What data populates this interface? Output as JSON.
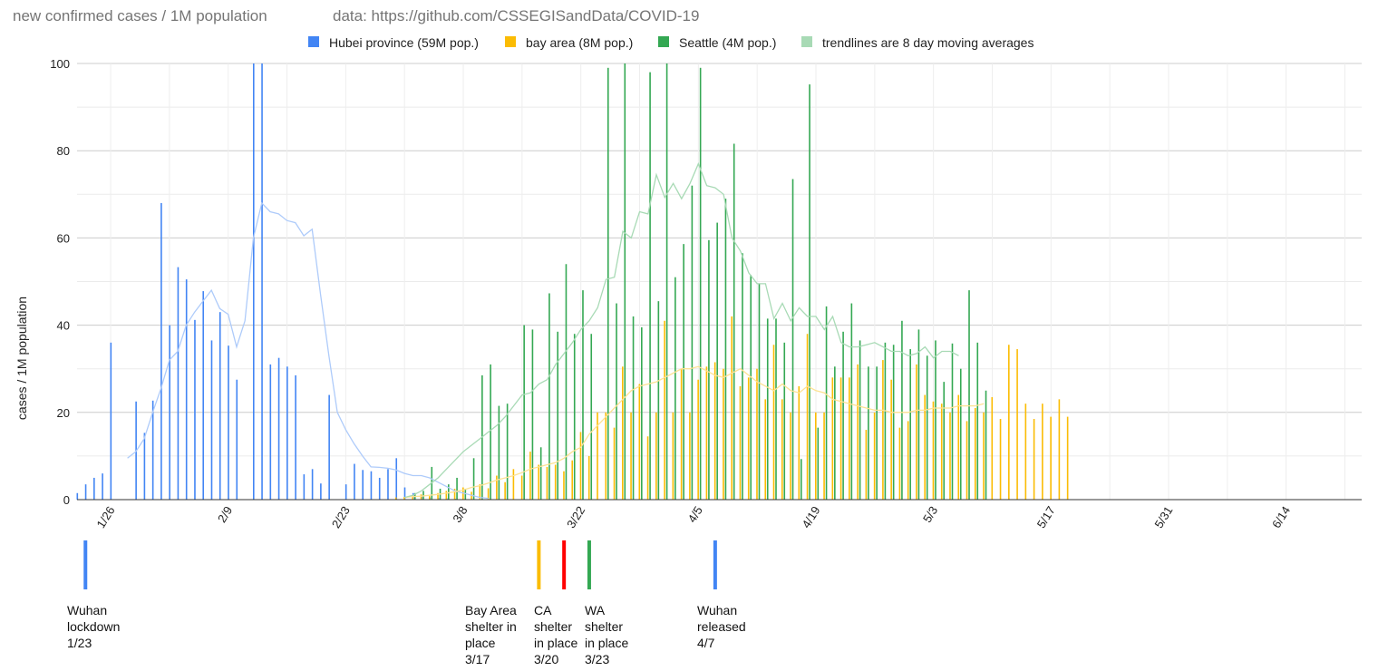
{
  "chart_data": {
    "type": "bar",
    "title": "new confirmed cases / 1M population",
    "subtitle": "data: https://github.com/CSSEGISandData/COVID-19",
    "ylabel": "cases / 1M population",
    "ylim": [
      0,
      100
    ],
    "y_ticks": [
      "0",
      "20",
      "40",
      "60",
      "80",
      "100"
    ],
    "x_ticks": [
      "1/26",
      "2/9",
      "2/23",
      "3/8",
      "3/22",
      "4/5",
      "4/19",
      "5/3",
      "5/17",
      "5/31",
      "6/14"
    ],
    "x_range": [
      "1/22",
      "6/23"
    ],
    "legend_position": "top",
    "grid": true,
    "series": [
      {
        "name": "Hubei province (59M pop.)",
        "color": "#4285F4",
        "start": "1/22",
        "values": [
          1.5,
          3.5,
          5,
          6,
          36,
          0,
          0,
          22.5,
          15.3,
          22.7,
          68,
          40,
          53.3,
          50.5,
          41.2,
          47.8,
          36.5,
          43,
          35.3,
          27.5,
          0,
          100,
          100,
          31,
          32.5,
          30.5,
          28.5,
          5.8,
          7,
          3.7,
          24,
          0,
          3.5,
          8.2,
          6.8,
          6.5,
          5,
          7,
          9.5,
          2.8,
          1.5,
          1,
          0.5,
          0.4,
          0.3,
          0.2,
          0.1,
          0.1,
          0.1,
          0.1,
          0.1,
          0.1,
          0.1,
          0.1
        ]
      },
      {
        "name": "bay area (8M pop.)",
        "color": "#FBBC04",
        "start": "2/29",
        "values": [
          0.5,
          0.6,
          1,
          1.2,
          0.8,
          1.5,
          2,
          2.5,
          2.8,
          1.8,
          3.5,
          2.6,
          5.5,
          4,
          7,
          5.5,
          11,
          8,
          7.5,
          8,
          6.5,
          9,
          15.5,
          10,
          20,
          20,
          16.5,
          30.5,
          20,
          26.5,
          14.5,
          20,
          41,
          20,
          30,
          20,
          27.5,
          30.5,
          31.5,
          30,
          42,
          26,
          28,
          30,
          23,
          35.5,
          23,
          20,
          26,
          38,
          20,
          20,
          28,
          28,
          28,
          31,
          16,
          20,
          32,
          27.5,
          16.5,
          18,
          31,
          24,
          22.5,
          22,
          20,
          24,
          18,
          21,
          20,
          23.5,
          18.5,
          35.5,
          34.5,
          22,
          18.5,
          22,
          19,
          23,
          19
        ]
      },
      {
        "name": "Seattle (4M pop.)",
        "color": "#34A853",
        "start": "2/29",
        "values": [
          0,
          0,
          1.5,
          2,
          7.5,
          2.5,
          3.5,
          5,
          2.5,
          9.5,
          28.5,
          31,
          21.5,
          22,
          0,
          40,
          39,
          12,
          47.3,
          38.5,
          54,
          38,
          48,
          38,
          0,
          99,
          45,
          100,
          42,
          39.5,
          98,
          45.5,
          100,
          51,
          58.6,
          72,
          99,
          59.5,
          63.5,
          69,
          81.6,
          56.5,
          51.5,
          49.5,
          41.5,
          41.5,
          36,
          73.5,
          9.3,
          95.2,
          16.5,
          44.3,
          30.5,
          38.5,
          45,
          36.5,
          30.5,
          30.5,
          36,
          35.5,
          41,
          34.5,
          39,
          33,
          36.5,
          27,
          35.8,
          30,
          48,
          36,
          25
        ]
      },
      {
        "name": "trendlines are 8 day moving averages",
        "color": "#A8DAB5",
        "type": "line"
      }
    ],
    "trendlines": [
      {
        "color": "#AECBFA",
        "start": "1/28",
        "values": [
          9.5,
          11,
          14,
          20,
          25.5,
          32,
          34,
          40,
          43,
          45.5,
          48,
          43.8,
          42.5,
          35,
          41,
          60,
          68,
          66,
          65.5,
          64,
          63.5,
          60.5,
          62,
          47,
          33,
          20,
          16,
          12.8,
          10,
          7.5,
          7.4,
          7.2,
          6.8,
          6,
          5.5,
          5.5,
          5,
          4,
          3,
          2,
          1.5,
          1,
          0.5,
          0.3
        ]
      },
      {
        "color": "#FDE293",
        "start": "3/1",
        "values": [
          0.5,
          0.7,
          0.8,
          1,
          1.2,
          1.5,
          1.8,
          2.2,
          2.8,
          3.2,
          3.8,
          4.5,
          5,
          5.5,
          6.2,
          7,
          7.5,
          8,
          8.5,
          9.5,
          11,
          12,
          15,
          17,
          19,
          21,
          23,
          25,
          26,
          26.5,
          27,
          28,
          29,
          30,
          30,
          30.5,
          29.5,
          28.5,
          28,
          29,
          30,
          28.5,
          27,
          26,
          25,
          26.5,
          25,
          24.5,
          26,
          25,
          24.5,
          23,
          22.5,
          22,
          21.5,
          21,
          20.5,
          20.5,
          20,
          20,
          20,
          20.5,
          20.5,
          21,
          21,
          21,
          21.5,
          21.5,
          21.5,
          22
        ]
      },
      {
        "color": "#A8DAB5",
        "start": "3/1",
        "values": [
          0.5,
          1,
          2,
          3.5,
          5,
          7,
          9,
          11,
          12.5,
          14,
          15.5,
          17,
          19,
          21.5,
          24,
          24.5,
          26.5,
          27.5,
          31,
          33.5,
          36,
          39,
          41,
          44,
          50.5,
          51,
          61.5,
          60,
          66,
          65.5,
          74.5,
          69.3,
          72.5,
          69,
          72.5,
          77,
          72,
          71.5,
          70,
          60,
          57,
          52,
          49.5,
          49.5,
          41.5,
          45,
          41,
          44,
          42,
          42,
          39,
          42,
          36,
          35,
          35,
          35.5,
          36,
          35,
          34,
          34,
          33,
          33.5,
          35,
          32.5,
          34,
          34,
          33
        ]
      }
    ],
    "annotations": [
      {
        "date": "1/23",
        "color": "#4285F4",
        "lines": [
          "Wuhan",
          "lockdown",
          "1/23"
        ]
      },
      {
        "date": "3/17",
        "color": "#FBBC04",
        "lines": [
          "Bay Area",
          "shelter in",
          "place",
          "3/17"
        ]
      },
      {
        "date": "3/20",
        "color": "#FF0000",
        "lines": [
          "CA",
          "shelter",
          "in place",
          "3/20"
        ]
      },
      {
        "date": "3/23",
        "color": "#34A853",
        "lines": [
          "WA",
          "shelter",
          "in place",
          "3/23"
        ]
      },
      {
        "date": "4/7",
        "color": "#4285F4",
        "lines": [
          "Wuhan",
          "released",
          "4/7"
        ]
      }
    ]
  }
}
